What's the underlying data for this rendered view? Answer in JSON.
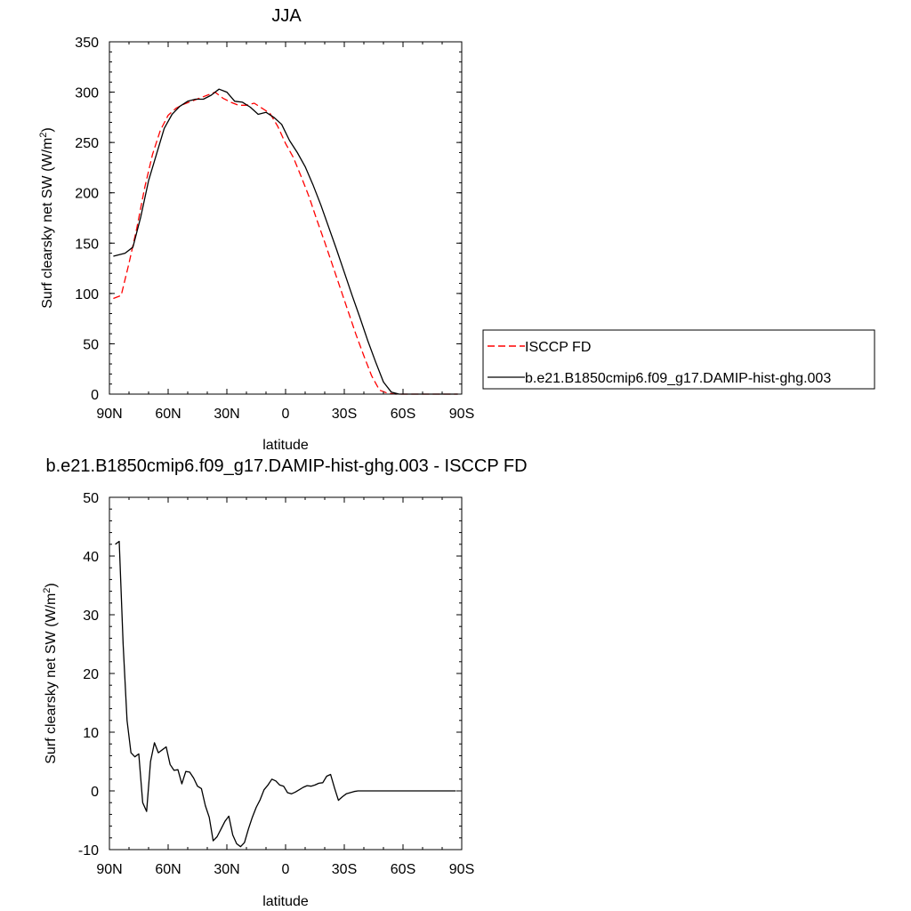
{
  "chart_data": [
    {
      "type": "line",
      "title": "JJA",
      "xlabel": "latitude",
      "ylabel": "Surf clearsky net SW (W/m",
      "ylabel_sup": "2",
      "ylabel_close": ")",
      "xlim": [
        90,
        -90
      ],
      "ylim": [
        0,
        350
      ],
      "x_ticks": [
        90,
        60,
        30,
        0,
        -30,
        -60,
        -90
      ],
      "x_tick_labels": [
        "90N",
        "60N",
        "30N",
        "0",
        "30S",
        "60S",
        "90S"
      ],
      "y_ticks": [
        0,
        50,
        100,
        150,
        200,
        250,
        300,
        350
      ],
      "y_tick_labels": [
        "0",
        "50",
        "100",
        "150",
        "200",
        "250",
        "300",
        "350"
      ],
      "legend_position": "right",
      "series": [
        {
          "name": "ISCCP FD",
          "color": "#ff0000",
          "dash": "dashed",
          "x": [
            88,
            84,
            80,
            76,
            72,
            68,
            64,
            60,
            56,
            52,
            48,
            44,
            40,
            36,
            32,
            28,
            24,
            20,
            16,
            12,
            8,
            4,
            0,
            -4,
            -8,
            -12,
            -16,
            -20,
            -24,
            -28,
            -32,
            -36,
            -40,
            -44,
            -48,
            -52,
            -56,
            -60,
            -64,
            -68,
            -72,
            -76,
            -80,
            -84,
            -88
          ],
          "y": [
            95,
            98,
            130,
            165,
            205,
            238,
            262,
            277,
            284,
            288,
            291,
            294,
            297,
            300,
            294,
            290,
            287,
            287,
            289,
            284,
            279,
            266,
            249,
            235,
            216,
            196,
            173,
            151,
            128,
            105,
            82,
            59,
            38,
            18,
            4,
            1,
            0,
            0,
            0,
            0,
            0,
            0,
            0,
            0,
            0
          ]
        },
        {
          "name": "b.e21.B1850cmip6.f09_g17.DAMIP-hist-ghg.003",
          "color": "#000000",
          "dash": "solid",
          "x": [
            88,
            86,
            82,
            78,
            74,
            70,
            66,
            62,
            58,
            54,
            50,
            46,
            42,
            38,
            34,
            30,
            26,
            22,
            18,
            14,
            10,
            6,
            2,
            -2,
            -6,
            -10,
            -14,
            -18,
            -22,
            -26,
            -30,
            -34,
            -38,
            -42,
            -46,
            -50,
            -54,
            -58,
            -62,
            -66,
            -70,
            -74,
            -78,
            -82,
            -86,
            -88
          ],
          "y": [
            137,
            138,
            140,
            146,
            176,
            212,
            238,
            264,
            278,
            286,
            291,
            293,
            293,
            297,
            303,
            300,
            291,
            290,
            285,
            278,
            280,
            275,
            268,
            252,
            240,
            226,
            208,
            188,
            166,
            144,
            121,
            98,
            76,
            53,
            32,
            12,
            2,
            0,
            0,
            0,
            0,
            0,
            0,
            0,
            0,
            0
          ]
        }
      ]
    },
    {
      "type": "line",
      "title": "b.e21.B1850cmip6.f09_g17.DAMIP-hist-ghg.003 - ISCCP FD",
      "xlabel": "latitude",
      "ylabel": "Surf clearsky net SW (W/m",
      "ylabel_sup": "2",
      "ylabel_close": ")",
      "xlim": [
        90,
        -90
      ],
      "ylim": [
        -10,
        50
      ],
      "x_ticks": [
        90,
        60,
        30,
        0,
        -30,
        -60,
        -90
      ],
      "x_tick_labels": [
        "90N",
        "60N",
        "30N",
        "0",
        "30S",
        "60S",
        "90S"
      ],
      "y_ticks": [
        -10,
        0,
        10,
        20,
        30,
        40,
        50
      ],
      "y_tick_labels": [
        "-10",
        "0",
        "10",
        "20",
        "30",
        "40",
        "50"
      ],
      "series": [
        {
          "color": "#000000",
          "dash": "solid",
          "x": [
            87,
            85,
            83,
            81,
            79,
            77,
            75,
            73,
            71,
            69,
            67,
            65,
            63,
            61,
            59,
            57,
            55,
            53,
            51,
            49,
            47,
            45,
            43,
            41,
            39,
            37,
            35,
            33,
            31,
            29,
            27,
            25,
            23,
            21,
            19,
            17,
            15,
            13,
            11,
            9,
            7,
            5,
            3,
            1,
            -1,
            -3,
            -5,
            -7,
            -9,
            -11,
            -13,
            -15,
            -17,
            -19,
            -21,
            -23,
            -25,
            -27,
            -29,
            -31,
            -33,
            -35,
            -37,
            -39,
            -41,
            -43,
            -45,
            -47,
            -49,
            -51,
            -53,
            -55,
            -57,
            -59,
            -61,
            -63,
            -65,
            -67,
            -69,
            -71,
            -73,
            -75,
            -77,
            -79,
            -81,
            -83,
            -85,
            -87
          ],
          "y": [
            42,
            42.5,
            25,
            12,
            6.5,
            5.8,
            6.3,
            -2,
            -3.5,
            5,
            8.2,
            6.5,
            7,
            7.5,
            4.5,
            3.5,
            3.6,
            1.2,
            3.3,
            3.2,
            2.2,
            0.8,
            0.4,
            -2.5,
            -4.5,
            -8.5,
            -7.8,
            -6.5,
            -5.2,
            -4.3,
            -7.5,
            -9,
            -9.5,
            -8.8,
            -6.5,
            -4.5,
            -2.8,
            -1.5,
            0.2,
            1,
            2,
            1.7,
            1,
            0.8,
            -0.3,
            -0.5,
            -0.2,
            0.2,
            0.6,
            0.9,
            0.8,
            1,
            1.3,
            1.4,
            2.5,
            2.8,
            0.5,
            -1.6,
            -1,
            -0.5,
            -0.3,
            -0.1,
            0,
            0,
            0,
            0,
            0,
            0,
            0,
            0,
            0,
            0,
            0,
            0,
            0,
            0,
            0,
            0,
            0,
            0,
            0,
            0,
            0,
            0,
            0,
            0,
            0,
            0
          ]
        }
      ]
    }
  ]
}
